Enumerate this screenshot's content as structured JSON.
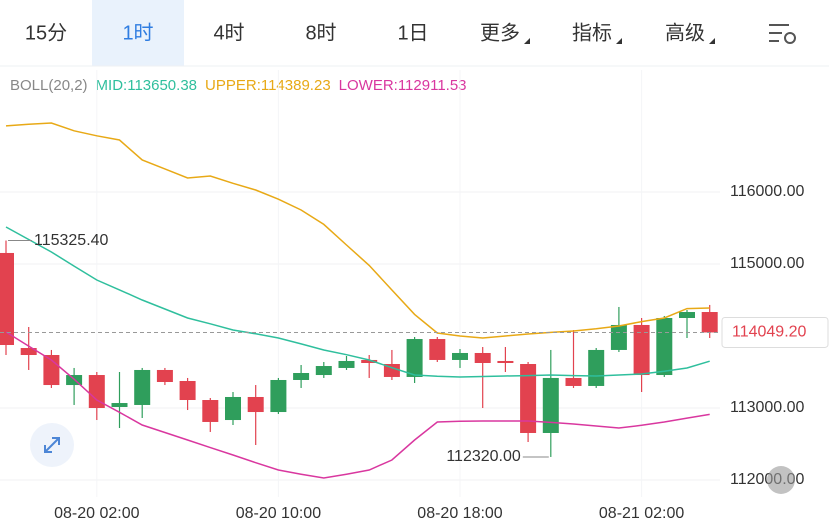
{
  "tabs": [
    {
      "label": "15分",
      "active": false
    },
    {
      "label": "1时",
      "active": true
    },
    {
      "label": "4时",
      "active": false
    },
    {
      "label": "8时",
      "active": false
    },
    {
      "label": "1日",
      "active": false
    },
    {
      "label": "更多",
      "active": false,
      "menu": true
    },
    {
      "label": "指标",
      "active": false,
      "menu": true
    },
    {
      "label": "高级",
      "active": false,
      "menu": true
    }
  ],
  "chart_data": {
    "type": "candlestick",
    "indicator": "BOLL(20,2)",
    "categories": [
      null,
      null,
      null,
      null,
      "08-20 02:00",
      null,
      null,
      null,
      null,
      null,
      null,
      null,
      "08-20 10:00",
      null,
      null,
      null,
      null,
      null,
      null,
      null,
      "08-20 18:00",
      null,
      null,
      null,
      null,
      null,
      null,
      null,
      "08-21 02:00",
      null,
      null,
      null
    ],
    "open": [
      115153,
      113833,
      113736,
      113319,
      113458,
      113014,
      113042,
      113528,
      113375,
      113111,
      112833,
      113153,
      112944,
      113389,
      113458,
      113556,
      113667,
      113611,
      113431,
      113958,
      113667,
      113764,
      113653,
      113611,
      112653,
      113417,
      113306,
      113806,
      114153,
      113458,
      114250,
      114333
    ],
    "high": [
      115325.4,
      114125,
      113806,
      113556,
      113500,
      113500,
      113556,
      113556,
      113417,
      113139,
      113222,
      113319,
      113417,
      113597,
      113639,
      113722,
      113736,
      113806,
      113986,
      113986,
      113819,
      113847,
      113847,
      113639,
      113806,
      114083,
      113833,
      114403,
      114250,
      114278,
      114361,
      114431
    ],
    "low": [
      113736,
      113528,
      113278,
      113042,
      112833,
      112722,
      112861,
      113319,
      112972,
      112667,
      112764,
      112486,
      112917,
      113278,
      113417,
      113528,
      113417,
      113389,
      113347,
      113639,
      113556,
      113000,
      113500,
      112528,
      112320,
      113278,
      113278,
      113778,
      113222,
      113431,
      113972,
      113972
    ],
    "close": [
      113875,
      113736,
      113319,
      113458,
      113000,
      113069,
      113528,
      113361,
      113111,
      112806,
      113153,
      112944,
      113389,
      113486,
      113583,
      113653,
      113625,
      113431,
      113958,
      113667,
      113764,
      113625,
      113625,
      112653,
      113417,
      113306,
      113806,
      114153,
      113458,
      114250,
      114333,
      114049.2
    ],
    "up_color": "#2f9e5c",
    "down_color": "#e2424f",
    "series": [
      {
        "name": "MID:113650.38",
        "color": "#2fbf9d",
        "values": [
          115514,
          115340,
          115167,
          114970,
          114778,
          114640,
          114500,
          114375,
          114250,
          114170,
          114083,
          114030,
          113972,
          113890,
          113806,
          113740,
          113667,
          113560,
          113458,
          113440,
          113431,
          113438,
          113444,
          113450,
          113458,
          113450,
          113444,
          113458,
          113472,
          113510,
          113556,
          113650.38
        ]
      },
      {
        "name": "UPPER:114389.23",
        "color": "#e8a916",
        "values": [
          116917,
          116940,
          116958,
          116850,
          116780,
          116722,
          116444,
          116320,
          116194,
          116222,
          116120,
          116028,
          115900,
          115750,
          115550,
          115264,
          114980,
          114639,
          114300,
          114042,
          114000,
          113972,
          114000,
          114028,
          114050,
          114069,
          114100,
          114139,
          114200,
          114250,
          114380,
          114389.23
        ]
      },
      {
        "name": "LOWER:112911.53",
        "color": "#d9379f",
        "values": [
          114056,
          113860,
          113667,
          113400,
          113111,
          112940,
          112764,
          112660,
          112556,
          112450,
          112347,
          112240,
          112139,
          112080,
          112028,
          112080,
          112139,
          112278,
          112556,
          112806,
          112815,
          112819,
          112819,
          112819,
          112800,
          112778,
          112750,
          112722,
          112760,
          112806,
          112860,
          112911.53
        ]
      }
    ],
    "ylim": [
      111764,
      117694
    ],
    "yticks": [
      {
        "value": 112000,
        "label": "112000.00"
      },
      {
        "value": 113000,
        "label": "113000.00"
      },
      {
        "value": 115000,
        "label": "115000.00"
      },
      {
        "value": 116000,
        "label": "116000.00"
      }
    ],
    "last_price": {
      "value": 114049.2,
      "label": "114049.20"
    },
    "annotations": [
      {
        "value": 115325.4,
        "label": "115325.40",
        "kind": "high"
      },
      {
        "value": 112320,
        "label": "112320.00",
        "kind": "low"
      }
    ],
    "grid": true
  }
}
